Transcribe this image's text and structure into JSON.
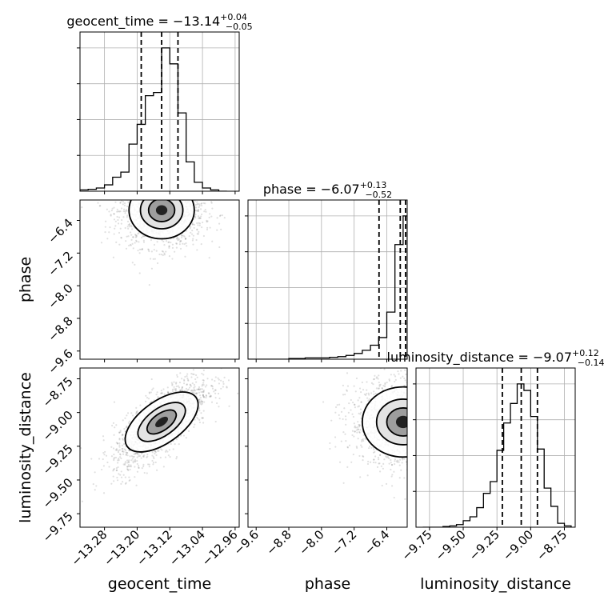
{
  "chart_data": {
    "type": "corner",
    "parameters": [
      {
        "name": "geocent_time",
        "title_label": "geocent_time = −13.14",
        "title_sup": "+0.04",
        "title_sub": "−0.05",
        "median": -13.14,
        "q_lo": -13.19,
        "q_hi": -13.1,
        "range": [
          -13.34,
          -12.95
        ],
        "ticks": [
          -13.28,
          -13.2,
          -13.12,
          -13.04,
          -12.96
        ],
        "tick_labels": [
          "−13.28",
          "−13.20",
          "−13.12",
          "−13.04",
          "−12.96"
        ]
      },
      {
        "name": "phase",
        "title_label": "phase = −6.07",
        "title_sup": "+0.13",
        "title_sub": "−0.52",
        "median": -6.07,
        "q_lo": -6.59,
        "q_hi": -5.94,
        "range": [
          -9.8,
          -5.9
        ],
        "ticks": [
          -9.6,
          -8.8,
          -8.0,
          -7.2,
          -6.4
        ],
        "tick_labels": [
          "−9.6",
          "−8.8",
          "−8.0",
          "−7.2",
          "−6.4"
        ]
      },
      {
        "name": "luminosity_distance",
        "title_label": "luminosity_distance = −9.07",
        "title_sup": "+0.12",
        "title_sub": "−0.14",
        "median": -9.07,
        "q_lo": -9.21,
        "q_hi": -8.95,
        "range": [
          -9.85,
          -8.67
        ],
        "ticks": [
          -9.75,
          -9.5,
          -9.25,
          -9.0,
          -8.75
        ],
        "tick_labels": [
          "−9.75",
          "−9.50",
          "−9.25",
          "−9.00",
          "−8.75"
        ]
      }
    ],
    "histograms": {
      "geocent_time": {
        "bin_edges": [
          -13.34,
          -13.32,
          -13.3,
          -13.28,
          -13.26,
          -13.24,
          -13.22,
          -13.2,
          -13.18,
          -13.16,
          -13.14,
          -13.12,
          -13.1,
          -13.08,
          -13.06,
          -13.04,
          -13.02,
          -13.0,
          -12.98
        ],
        "counts": [
          2,
          3,
          5,
          10,
          22,
          30,
          74,
          105,
          150,
          155,
          225,
          200,
          123,
          46,
          14,
          5,
          2,
          0
        ]
      },
      "phase": {
        "bin_edges": [
          -9.8,
          -9.6,
          -9.4,
          -9.2,
          -9.0,
          -8.8,
          -8.6,
          -8.4,
          -8.2,
          -8.0,
          -7.8,
          -7.6,
          -7.4,
          -7.2,
          -7.0,
          -6.8,
          -6.6,
          -6.4,
          -6.2,
          -6.0,
          -5.9
        ],
        "counts": [
          0,
          0,
          0,
          0,
          0,
          1,
          1,
          2,
          2,
          2,
          3,
          4,
          6,
          9,
          14,
          22,
          34,
          74,
          180,
          225
        ]
      },
      "luminosity_distance": {
        "bin_edges": [
          -9.8,
          -9.75,
          -9.7,
          -9.65,
          -9.6,
          -9.55,
          -9.5,
          -9.45,
          -9.4,
          -9.35,
          -9.3,
          -9.25,
          -9.2,
          -9.15,
          -9.1,
          -9.05,
          -9.0,
          -8.95,
          -8.9,
          -8.85,
          -8.8,
          -8.75,
          -8.7
        ],
        "counts": [
          0,
          0,
          0,
          1,
          2,
          4,
          10,
          16,
          30,
          52,
          70,
          118,
          160,
          190,
          220,
          210,
          170,
          120,
          60,
          32,
          6,
          2
        ]
      }
    },
    "scatter_2d": [
      {
        "x_param": "geocent_time",
        "y_param": "phase",
        "center": [
          -13.14,
          -6.15
        ],
        "spread": [
          0.04,
          0.35
        ],
        "correlation": 0.0
      },
      {
        "x_param": "geocent_time",
        "y_param": "luminosity_distance",
        "center": [
          -13.14,
          -9.07
        ],
        "spread": [
          0.045,
          0.13
        ],
        "correlation": 0.75
      },
      {
        "x_param": "phase",
        "y_param": "luminosity_distance",
        "center": [
          -6.0,
          -9.07
        ],
        "spread": [
          0.5,
          0.13
        ],
        "correlation": 0.0
      }
    ],
    "grid": true
  }
}
